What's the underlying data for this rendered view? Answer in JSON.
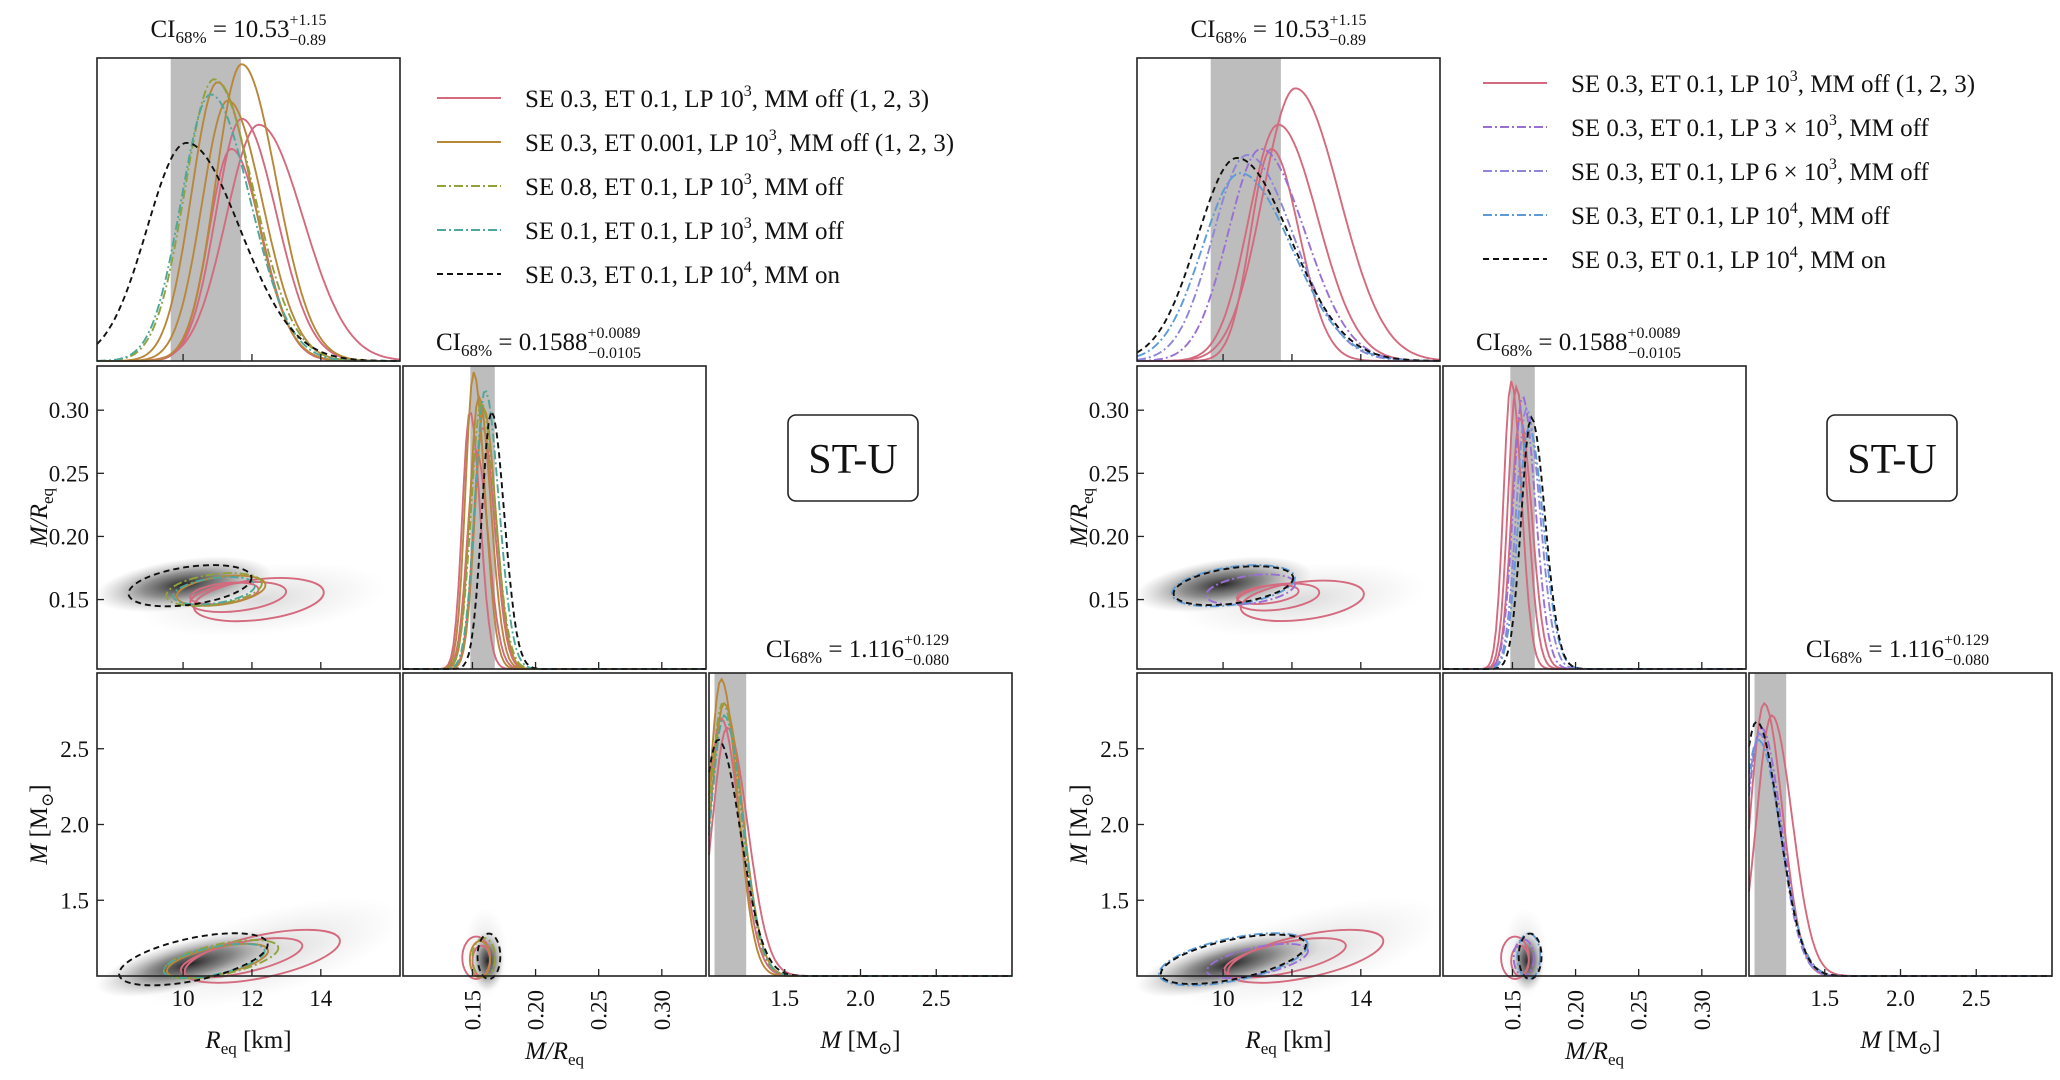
{
  "colors": {
    "pink": "#d46a7e",
    "gold": "#b8873a",
    "olive": "#8fa23c",
    "teal": "#4ea79b",
    "purple": "#9a6fd4",
    "lavender": "#8d86d8",
    "blue": "#5e9bd6",
    "black": "#111111",
    "band": "#bdbdbd"
  },
  "chart_data": [
    {
      "type": "corner",
      "panel": "left",
      "badge": "ST-U",
      "ci": {
        "r": "CI",
        "r_sub": "68%",
        "r_val": "= 10.53",
        "r_sup": "+1.15",
        "r_inf": "−0.89",
        "c_val": "= 0.1588",
        "c_sup": "+0.0089",
        "c_inf": "−0.0105",
        "m_val": "= 1.116",
        "m_sup": "+0.129",
        "m_inf": "−0.080"
      },
      "axes": {
        "R": {
          "range": [
            7.5,
            16.3
          ],
          "ticks": [
            "10",
            "12",
            "14"
          ],
          "tick_values": [
            10,
            12,
            14
          ],
          "label": "R",
          "label_sub": "eq",
          "label_unit": " [km]"
        },
        "C": {
          "range": [
            0.095,
            0.335
          ],
          "ticks": [
            "0.15",
            "0.20",
            "0.25",
            "0.30"
          ],
          "tick_values": [
            0.15,
            0.2,
            0.25,
            0.3
          ],
          "label": "M/R",
          "label_sub": "eq"
        },
        "M": {
          "range": [
            1.0,
            3.0
          ],
          "ticks": [
            "1.5",
            "2.0",
            "2.5"
          ],
          "tick_values": [
            1.5,
            2.0,
            2.5
          ],
          "label": "M",
          "label_unit": " [M",
          "label_sun": "⊙",
          "label_end": "]"
        }
      },
      "legend": [
        {
          "label": "SE 0.3, ET 0.1, LP 10",
          "sup": "3",
          "tail": ", MM off (1, 2, 3)",
          "color_key": "pink",
          "dash": ""
        },
        {
          "label": "SE 0.3, ET 0.001, LP 10",
          "sup": "3",
          "tail": ", MM off (1, 2, 3)",
          "color_key": "gold",
          "dash": ""
        },
        {
          "label": "SE 0.8, ET 0.1, LP 10",
          "sup": "3",
          "tail": ", MM off",
          "color_key": "olive",
          "dash": "9 3 2 3"
        },
        {
          "label": "SE 0.1, ET 0.1, LP 10",
          "sup": "3",
          "tail": ", MM off",
          "color_key": "teal",
          "dash": "9 3 2 3"
        },
        {
          "label": "SE 0.3, ET 0.1, LP 10",
          "sup": "4",
          "tail": ", MM on",
          "color_key": "black",
          "dash": "6 4"
        }
      ],
      "r_curves": [
        {
          "color_key": "pink",
          "mu": 11.4,
          "s": 0.65,
          "amp": 0.7
        },
        {
          "color_key": "pink",
          "mu": 11.7,
          "s": 0.75,
          "amp": 0.8
        },
        {
          "color_key": "pink",
          "mu": 12.2,
          "s": 0.95,
          "amp": 0.78
        },
        {
          "color_key": "gold",
          "mu": 11.3,
          "s": 0.75,
          "amp": 0.86
        },
        {
          "color_key": "gold",
          "mu": 11.0,
          "s": 0.75,
          "amp": 0.92
        },
        {
          "color_key": "gold",
          "mu": 11.7,
          "s": 0.75,
          "amp": 0.98
        },
        {
          "color_key": "olive",
          "mu": 10.9,
          "s": 0.85,
          "amp": 0.93
        },
        {
          "color_key": "teal",
          "mu": 10.8,
          "s": 0.85,
          "amp": 0.88
        },
        {
          "color_key": "black",
          "mu": 10.1,
          "s": 1.15,
          "amp": 0.72
        }
      ],
      "c_curves": [
        {
          "color_key": "pink",
          "mu": 0.148,
          "s": 0.006,
          "amp": 0.85
        },
        {
          "color_key": "pink",
          "mu": 0.153,
          "s": 0.007,
          "amp": 0.72
        },
        {
          "color_key": "pink",
          "mu": 0.158,
          "s": 0.007,
          "amp": 0.8
        },
        {
          "color_key": "gold",
          "mu": 0.151,
          "s": 0.0065,
          "amp": 0.98
        },
        {
          "color_key": "gold",
          "mu": 0.155,
          "s": 0.007,
          "amp": 0.9
        },
        {
          "color_key": "gold",
          "mu": 0.159,
          "s": 0.007,
          "amp": 0.86
        },
        {
          "color_key": "olive",
          "mu": 0.157,
          "s": 0.008,
          "amp": 0.88
        },
        {
          "color_key": "teal",
          "mu": 0.16,
          "s": 0.008,
          "amp": 0.92
        },
        {
          "color_key": "black",
          "mu": 0.165,
          "s": 0.0075,
          "amp": 0.85
        }
      ],
      "m_curves": [
        {
          "color_key": "pink",
          "mu": 1.08,
          "s": 0.09,
          "amp": 0.85
        },
        {
          "color_key": "pink",
          "mu": 1.12,
          "s": 0.1,
          "amp": 0.82
        },
        {
          "color_key": "gold",
          "mu": 1.08,
          "s": 0.08,
          "amp": 0.98
        },
        {
          "color_key": "gold",
          "mu": 1.1,
          "s": 0.09,
          "amp": 0.9
        },
        {
          "color_key": "olive",
          "mu": 1.09,
          "s": 0.09,
          "amp": 0.9
        },
        {
          "color_key": "teal",
          "mu": 1.1,
          "s": 0.09,
          "amp": 0.86
        },
        {
          "color_key": "black",
          "mu": 1.06,
          "s": 0.11,
          "amp": 0.78
        }
      ],
      "rc_contours": [
        {
          "color_key": "pink",
          "cx": 11.6,
          "cy": 0.152,
          "rx": 1.4,
          "ry": 0.011,
          "rot": -7
        },
        {
          "color_key": "pink",
          "cx": 12.2,
          "cy": 0.15,
          "rx": 1.9,
          "ry": 0.016,
          "rot": -7
        },
        {
          "color_key": "pink",
          "cx": 11.2,
          "cy": 0.155,
          "rx": 1.0,
          "ry": 0.008,
          "rot": -7
        },
        {
          "color_key": "gold",
          "cx": 11.1,
          "cy": 0.157,
          "rx": 1.3,
          "ry": 0.011,
          "rot": -8
        },
        {
          "color_key": "olive",
          "cx": 10.9,
          "cy": 0.158,
          "rx": 1.4,
          "ry": 0.012,
          "rot": -8
        },
        {
          "color_key": "teal",
          "cx": 10.9,
          "cy": 0.157,
          "rx": 1.2,
          "ry": 0.01,
          "rot": -8
        },
        {
          "color_key": "black",
          "cx": 10.2,
          "cy": 0.161,
          "rx": 1.8,
          "ry": 0.015,
          "rot": -8
        }
      ],
      "rm_contours": [
        {
          "color_key": "pink",
          "cx": 11.7,
          "cy": 1.12,
          "rx": 1.8,
          "ry": 0.1,
          "rot": -12
        },
        {
          "color_key": "pink",
          "cx": 12.3,
          "cy": 1.13,
          "rx": 2.3,
          "ry": 0.14,
          "rot": -12
        },
        {
          "color_key": "gold",
          "cx": 11.0,
          "cy": 1.1,
          "rx": 1.5,
          "ry": 0.09,
          "rot": -12
        },
        {
          "color_key": "olive",
          "cx": 11.1,
          "cy": 1.11,
          "rx": 1.7,
          "ry": 0.1,
          "rot": -12
        },
        {
          "color_key": "teal",
          "cx": 10.9,
          "cy": 1.1,
          "rx": 1.5,
          "ry": 0.09,
          "rot": -12
        },
        {
          "color_key": "black",
          "cx": 10.3,
          "cy": 1.11,
          "rx": 2.2,
          "ry": 0.14,
          "rot": -12
        }
      ],
      "cm_contours": [
        {
          "color_key": "pink",
          "cx": 0.153,
          "cy": 1.12,
          "rx": 0.011,
          "ry": 0.14,
          "rot": 0
        },
        {
          "color_key": "pink",
          "cx": 0.157,
          "cy": 1.1,
          "rx": 0.007,
          "ry": 0.1,
          "rot": 0
        },
        {
          "color_key": "gold",
          "cx": 0.156,
          "cy": 1.11,
          "rx": 0.008,
          "ry": 0.12,
          "rot": 0
        },
        {
          "color_key": "olive",
          "cx": 0.159,
          "cy": 1.12,
          "rx": 0.009,
          "ry": 0.13,
          "rot": 0
        },
        {
          "color_key": "black",
          "cx": 0.163,
          "cy": 1.13,
          "rx": 0.009,
          "ry": 0.15,
          "rot": 0
        }
      ]
    },
    {
      "type": "corner",
      "panel": "right",
      "badge": "ST-U",
      "ci": {
        "r": "CI",
        "r_sub": "68%",
        "r_val": "= 10.53",
        "r_sup": "+1.15",
        "r_inf": "−0.89",
        "c_val": "= 0.1588",
        "c_sup": "+0.0089",
        "c_inf": "−0.0105",
        "m_val": "= 1.116",
        "m_sup": "+0.129",
        "m_inf": "−0.080"
      },
      "axes": {
        "R": {
          "range": [
            7.5,
            16.3
          ],
          "ticks": [
            "10",
            "12",
            "14"
          ],
          "tick_values": [
            10,
            12,
            14
          ],
          "label": "R",
          "label_sub": "eq",
          "label_unit": " [km]"
        },
        "C": {
          "range": [
            0.095,
            0.335
          ],
          "ticks": [
            "0.15",
            "0.20",
            "0.25",
            "0.30"
          ],
          "tick_values": [
            0.15,
            0.2,
            0.25,
            0.3
          ],
          "label": "M/R",
          "label_sub": "eq"
        },
        "M": {
          "range": [
            1.0,
            3.0
          ],
          "ticks": [
            "1.5",
            "2.0",
            "2.5"
          ],
          "tick_values": [
            1.5,
            2.0,
            2.5
          ],
          "label": "M",
          "label_unit": " [M",
          "label_sun": "⊙",
          "label_end": "]"
        }
      },
      "legend": [
        {
          "label": "SE 0.3, ET 0.1, LP 10",
          "sup": "3",
          "tail": ", MM off (1, 2, 3)",
          "color_key": "pink",
          "dash": ""
        },
        {
          "label": "SE 0.3, ET 0.1, LP 3 × 10",
          "sup": "3",
          "tail": ", MM off",
          "color_key": "purple",
          "dash": "9 3 2 3"
        },
        {
          "label": "SE 0.3, ET 0.1, LP 6 × 10",
          "sup": "3",
          "tail": ", MM off",
          "color_key": "lavender",
          "dash": "9 3 2 3"
        },
        {
          "label": "SE 0.3, ET 0.1, LP 10",
          "sup": "4",
          "tail": ", MM off",
          "color_key": "blue",
          "dash": "9 3 2 3"
        },
        {
          "label": "SE 0.3, ET 0.1, LP 10",
          "sup": "4",
          "tail": ", MM on",
          "color_key": "black",
          "dash": "6 4"
        }
      ],
      "r_curves": [
        {
          "color_key": "pink",
          "mu": 11.4,
          "s": 0.6,
          "amp": 0.7
        },
        {
          "color_key": "pink",
          "mu": 11.6,
          "s": 0.85,
          "amp": 0.78
        },
        {
          "color_key": "pink",
          "mu": 12.1,
          "s": 0.95,
          "amp": 0.9
        },
        {
          "color_key": "purple",
          "mu": 11.1,
          "s": 0.95,
          "amp": 0.7
        },
        {
          "color_key": "lavender",
          "mu": 10.7,
          "s": 1.0,
          "amp": 0.68
        },
        {
          "color_key": "blue",
          "mu": 10.5,
          "s": 1.1,
          "amp": 0.62
        },
        {
          "color_key": "black",
          "mu": 10.4,
          "s": 1.15,
          "amp": 0.67
        }
      ],
      "c_curves": [
        {
          "color_key": "pink",
          "mu": 0.149,
          "s": 0.006,
          "amp": 0.95
        },
        {
          "color_key": "pink",
          "mu": 0.153,
          "s": 0.0065,
          "amp": 0.93
        },
        {
          "color_key": "pink",
          "mu": 0.156,
          "s": 0.007,
          "amp": 0.83
        },
        {
          "color_key": "purple",
          "mu": 0.158,
          "s": 0.0075,
          "amp": 0.9
        },
        {
          "color_key": "lavender",
          "mu": 0.161,
          "s": 0.008,
          "amp": 0.86
        },
        {
          "color_key": "blue",
          "mu": 0.163,
          "s": 0.0085,
          "amp": 0.8
        },
        {
          "color_key": "black",
          "mu": 0.165,
          "s": 0.008,
          "amp": 0.83
        }
      ],
      "m_curves": [
        {
          "color_key": "pink",
          "mu": 1.1,
          "s": 0.09,
          "amp": 0.9
        },
        {
          "color_key": "pink",
          "mu": 1.15,
          "s": 0.1,
          "amp": 0.86
        },
        {
          "color_key": "purple",
          "mu": 1.08,
          "s": 0.1,
          "amp": 0.82
        },
        {
          "color_key": "lavender",
          "mu": 1.07,
          "s": 0.1,
          "amp": 0.8
        },
        {
          "color_key": "blue",
          "mu": 1.06,
          "s": 0.11,
          "amp": 0.78
        },
        {
          "color_key": "black",
          "mu": 1.05,
          "s": 0.11,
          "amp": 0.84
        }
      ],
      "rc_contours": [
        {
          "color_key": "pink",
          "cx": 11.6,
          "cy": 0.152,
          "rx": 1.2,
          "ry": 0.01,
          "rot": -7
        },
        {
          "color_key": "pink",
          "cx": 12.3,
          "cy": 0.149,
          "rx": 1.8,
          "ry": 0.015,
          "rot": -7
        },
        {
          "color_key": "pink",
          "cx": 11.3,
          "cy": 0.154,
          "rx": 0.9,
          "ry": 0.007,
          "rot": -7
        },
        {
          "color_key": "purple",
          "cx": 10.8,
          "cy": 0.158,
          "rx": 1.3,
          "ry": 0.011,
          "rot": -8
        },
        {
          "color_key": "blue",
          "cx": 10.3,
          "cy": 0.161,
          "rx": 1.8,
          "ry": 0.015,
          "rot": -8
        },
        {
          "color_key": "black",
          "cx": 10.3,
          "cy": 0.161,
          "rx": 1.75,
          "ry": 0.014,
          "rot": -8
        }
      ],
      "rm_contours": [
        {
          "color_key": "pink",
          "cx": 11.8,
          "cy": 1.12,
          "rx": 1.8,
          "ry": 0.1,
          "rot": -12
        },
        {
          "color_key": "pink",
          "cx": 12.4,
          "cy": 1.13,
          "rx": 2.3,
          "ry": 0.14,
          "rot": -12
        },
        {
          "color_key": "purple",
          "cx": 11.0,
          "cy": 1.1,
          "rx": 1.5,
          "ry": 0.09,
          "rot": -12
        },
        {
          "color_key": "blue",
          "cx": 10.3,
          "cy": 1.11,
          "rx": 2.2,
          "ry": 0.14,
          "rot": -12
        },
        {
          "color_key": "black",
          "cx": 10.3,
          "cy": 1.11,
          "rx": 2.15,
          "ry": 0.13,
          "rot": -12
        }
      ],
      "cm_contours": [
        {
          "color_key": "pink",
          "cx": 0.152,
          "cy": 1.12,
          "rx": 0.011,
          "ry": 0.14,
          "rot": 0
        },
        {
          "color_key": "pink",
          "cx": 0.156,
          "cy": 1.1,
          "rx": 0.007,
          "ry": 0.1,
          "rot": 0
        },
        {
          "color_key": "purple",
          "cx": 0.159,
          "cy": 1.12,
          "rx": 0.008,
          "ry": 0.12,
          "rot": 0
        },
        {
          "color_key": "blue",
          "cx": 0.163,
          "cy": 1.13,
          "rx": 0.009,
          "ry": 0.15,
          "rot": 0
        },
        {
          "color_key": "black",
          "cx": 0.164,
          "cy": 1.13,
          "rx": 0.009,
          "ry": 0.15,
          "rot": 0
        }
      ]
    }
  ]
}
